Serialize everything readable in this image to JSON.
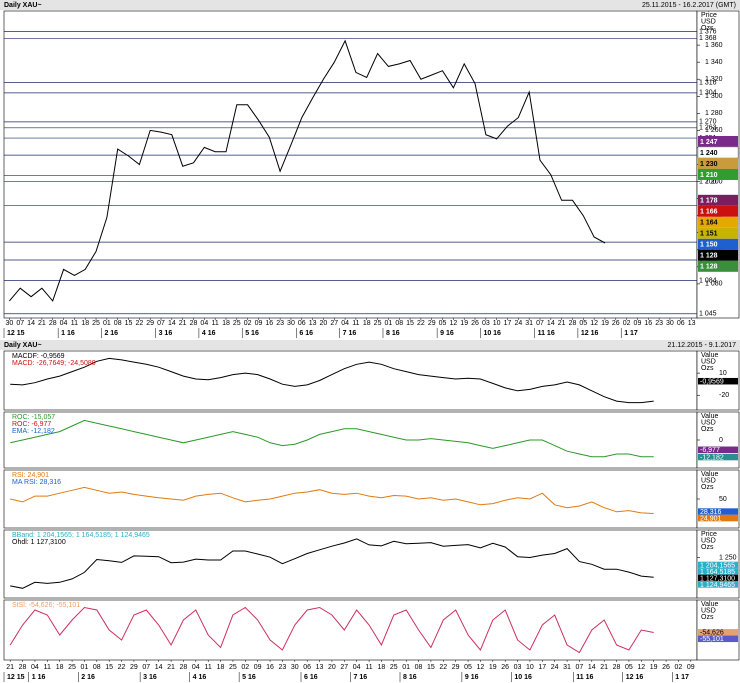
{
  "chart_data": [
    {
      "type": "line",
      "title": "Daily XAU~",
      "subtitle": "25.11.2015 - 16.2.2017 (GMT)",
      "unit_label": [
        "Price",
        "USD",
        "Ozs"
      ],
      "categories": [
        "30",
        "07",
        "14",
        "21",
        "28",
        "04",
        "11",
        "18",
        "25",
        "01",
        "08",
        "15",
        "22",
        "29",
        "07",
        "14",
        "21",
        "28",
        "04",
        "11",
        "18",
        "25",
        "02",
        "09",
        "16",
        "23",
        "30",
        "06",
        "13",
        "20",
        "27",
        "04",
        "11",
        "18",
        "25",
        "01",
        "08",
        "15",
        "22",
        "29",
        "05",
        "12",
        "19",
        "26",
        "03",
        "10",
        "17",
        "24",
        "31",
        "07",
        "14",
        "21",
        "28",
        "05",
        "12",
        "19",
        "26",
        "02",
        "09",
        "16",
        "23",
        "30",
        "06",
        "13"
      ],
      "category_groups": [
        "12 15",
        null,
        null,
        null,
        null,
        "1 16",
        null,
        null,
        null,
        "2 16",
        null,
        null,
        null,
        null,
        "3 16",
        null,
        null,
        null,
        "4 16",
        null,
        null,
        null,
        "5 16",
        null,
        null,
        null,
        null,
        "6 16",
        null,
        null,
        null,
        "7 16",
        null,
        null,
        null,
        "8 16",
        null,
        null,
        null,
        null,
        "9 16",
        null,
        null,
        null,
        "10 16",
        null,
        null,
        null,
        null,
        "11 16",
        null,
        null,
        null,
        "12 16",
        null,
        null,
        null,
        "1 17",
        null,
        null,
        null,
        null,
        null,
        null
      ],
      "series": [
        {
          "color": "#000000",
          "values": [
            1060,
            1075,
            1065,
            1075,
            1060,
            1097,
            1090,
            1097,
            1118,
            1158,
            1238,
            1230,
            1220,
            1260,
            1258,
            1255,
            1218,
            1222,
            1240,
            1235,
            1235,
            1290,
            1290,
            1272,
            1252,
            1212,
            1243,
            1275,
            1298,
            1320,
            1340,
            1365,
            1328,
            1322,
            1350,
            1335,
            1338,
            1342,
            1320,
            1325,
            1330,
            1310,
            1338,
            1315,
            1255,
            1250,
            1265,
            1275,
            1305,
            1225,
            1208,
            1178,
            1178,
            1160,
            1135,
            1128,
            null,
            null,
            null,
            null,
            null,
            null,
            null,
            null
          ]
        }
      ],
      "ylim": [
        1040,
        1400
      ],
      "yticks": [
        {
          "value": 1080,
          "label": "1 080"
        },
        {
          "value": 1100,
          "label": "1 100"
        },
        {
          "value": 1120,
          "label": "1 120"
        },
        {
          "value": 1140,
          "label": "1 140"
        },
        {
          "value": 1160,
          "label": "1 160"
        },
        {
          "value": 1180,
          "label": "1 180"
        },
        {
          "value": 1200,
          "label": "1 200"
        },
        {
          "value": 1220,
          "label": "1 220"
        },
        {
          "value": 1240,
          "label": "1 240"
        },
        {
          "value": 1260,
          "label": "1 260"
        },
        {
          "value": 1280,
          "label": "1 280"
        },
        {
          "value": 1300,
          "label": "1 300"
        },
        {
          "value": 1320,
          "label": "1 320"
        },
        {
          "value": 1340,
          "label": "1 340"
        },
        {
          "value": 1360,
          "label": "1 360"
        }
      ],
      "levels": [
        {
          "value": 1376,
          "label": "1 376"
        },
        {
          "value": 1368,
          "label": "1 368"
        },
        {
          "value": 1316,
          "label": "1 316"
        },
        {
          "value": 1304,
          "label": "1 304"
        },
        {
          "value": 1270,
          "label": "1 270"
        },
        {
          "value": 1263,
          "label": "1 263"
        },
        {
          "value": 1251,
          "label": "1 251"
        },
        {
          "value": 1231,
          "label": "1 231"
        },
        {
          "value": 1207,
          "label": "1 207"
        },
        {
          "value": 1200,
          "label": "1 200"
        },
        {
          "value": 1172,
          "label": "1 172"
        },
        {
          "value": 1129,
          "label": "1 129"
        },
        {
          "value": 1108,
          "label": "1 108"
        },
        {
          "value": 1084,
          "label": "1 084"
        },
        {
          "value": 1045,
          "label": "1 045"
        }
      ],
      "value_boxes": [
        {
          "value": 1247,
          "label": "1 247",
          "color": "#7a2a8a"
        },
        {
          "value": 1240,
          "label": "1 240",
          "color": "#ffffff"
        },
        {
          "value": 1230,
          "label": "1 230",
          "color": "#c89b3c"
        },
        {
          "value": 1210,
          "label": "1 210",
          "color": "#2e9e2e"
        },
        {
          "value": 1178,
          "label": "1 178",
          "color": "#7a1f5c"
        },
        {
          "value": 1166,
          "label": "1 166",
          "color": "#cc1010"
        },
        {
          "value": 1164,
          "label": "1 164",
          "color": "#e6a800"
        },
        {
          "value": 1151,
          "label": "1 151",
          "color": "#c8b400"
        },
        {
          "value": 1150,
          "label": "1 150",
          "color": "#1f5fcf"
        },
        {
          "value": 1128,
          "label": "1 128",
          "color": "#000000"
        },
        {
          "value": 1128,
          "label": "1 128",
          "color": "#3a8f3a"
        }
      ]
    },
    {
      "type": "line",
      "title": "Daily XAU~",
      "subtitle": "21.12.2015 - 9.1.2017",
      "unit_label": [
        "Value",
        "USD",
        "Ozs"
      ],
      "legend": [
        {
          "label": "MACDF: -0,9569",
          "color": "#000000"
        },
        {
          "label": "MACD: -26,7649; -24,5080",
          "color": "#cc1010"
        }
      ],
      "series": [
        {
          "color": "#000000",
          "values": [
            -5,
            -6,
            -3,
            2,
            6,
            12,
            18,
            26,
            30,
            28,
            25,
            22,
            18,
            12,
            6,
            2,
            1,
            4,
            8,
            10,
            8,
            2,
            -5,
            -8,
            -6,
            0,
            8,
            16,
            22,
            25,
            22,
            16,
            12,
            8,
            6,
            4,
            2,
            3,
            2,
            -4,
            -10,
            -14,
            -12,
            -8,
            -6,
            -2,
            -6,
            -14,
            -22,
            -28,
            -30,
            -30,
            -28,
            null,
            null,
            null
          ]
        }
      ],
      "ylim": [
        -40,
        40
      ],
      "yticks": [
        -20,
        10
      ],
      "value_boxes": [
        {
          "value": -0.9569,
          "label": "-0,9569",
          "color": "#000000"
        }
      ]
    },
    {
      "type": "line",
      "unit_label": [
        "Value",
        "USD",
        "Ozs"
      ],
      "legend": [
        {
          "label": "ROC: -15,057",
          "color": "#2a9a2a"
        },
        {
          "label": "ROC: -6,977",
          "color": "#cc1010"
        },
        {
          "label": "EMA: -12,182",
          "color": "#1f5fcf"
        }
      ],
      "series": [
        {
          "color": "#2a9a2a",
          "values": [
            -2,
            0,
            2,
            4,
            6,
            10,
            14,
            12,
            10,
            8,
            6,
            4,
            2,
            0,
            -2,
            0,
            2,
            4,
            6,
            4,
            2,
            -2,
            -4,
            -3,
            0,
            4,
            6,
            8,
            8,
            6,
            4,
            2,
            0,
            0,
            1,
            0,
            -1,
            -2,
            -4,
            -6,
            -4,
            -2,
            0,
            0,
            -4,
            -8,
            -10,
            -12,
            -12,
            -10,
            -10,
            -12,
            -12,
            null,
            null,
            null
          ]
        }
      ],
      "ylim": [
        -20,
        20
      ],
      "yticks": [
        0
      ],
      "value_boxes": [
        {
          "value": -6.977,
          "label": "-6,977",
          "color": "#7a2a8a"
        },
        {
          "value": -12.182,
          "label": "-12,182",
          "color": "#2a8f8f"
        }
      ]
    },
    {
      "type": "line",
      "unit_label": [
        "Value",
        "USD",
        "Ozs"
      ],
      "legend": [
        {
          "label": "RSI: 24,901",
          "color": "#e07a10"
        },
        {
          "label": "MA RSI: 28,316",
          "color": "#1f5fcf"
        }
      ],
      "series": [
        {
          "color": "#e07a10",
          "values": [
            50,
            45,
            55,
            55,
            60,
            65,
            70,
            65,
            60,
            62,
            58,
            55,
            52,
            50,
            48,
            55,
            58,
            60,
            52,
            45,
            48,
            50,
            55,
            60,
            62,
            66,
            60,
            58,
            60,
            55,
            52,
            56,
            55,
            50,
            52,
            48,
            50,
            45,
            40,
            42,
            48,
            52,
            50,
            60,
            40,
            35,
            38,
            45,
            35,
            28,
            30,
            26,
            25,
            null,
            null,
            null
          ]
        }
      ],
      "ylim": [
        0,
        100
      ],
      "yticks": [
        50
      ],
      "value_boxes": [
        {
          "value": 28.316,
          "label": "28,316",
          "color": "#1f5fcf"
        },
        {
          "value": 24.901,
          "label": "24,901",
          "color": "#e07a10"
        }
      ]
    },
    {
      "type": "line",
      "unit_label": [
        "Price",
        "USD",
        "Ozs"
      ],
      "legend": [
        {
          "label": "BBand: 1 204,1565; 1 164,5185; 1 124,9465",
          "color": "#2ab0c8"
        },
        {
          "label": "Ohdl: 1 127,3100",
          "color": "#000000"
        }
      ],
      "series": [
        {
          "color": "#000000",
          "values": [
            1075,
            1060,
            1097,
            1090,
            1097,
            1118,
            1158,
            1238,
            1230,
            1220,
            1260,
            1258,
            1255,
            1218,
            1222,
            1240,
            1235,
            1235,
            1290,
            1290,
            1272,
            1252,
            1212,
            1243,
            1275,
            1298,
            1320,
            1340,
            1365,
            1328,
            1322,
            1350,
            1335,
            1338,
            1342,
            1320,
            1325,
            1330,
            1310,
            1338,
            1315,
            1255,
            1250,
            1265,
            1275,
            1305,
            1225,
            1208,
            1178,
            1178,
            1160,
            1135,
            1128,
            null,
            null,
            null
          ]
        }
      ],
      "ylim": [
        1000,
        1420
      ],
      "yticks": [
        {
          "value": 1250,
          "label": "1 250"
        }
      ],
      "value_boxes": [
        {
          "value": 1204.1565,
          "label": "1 204,1565",
          "color": "#2ab0c8"
        },
        {
          "value": 1164.5185,
          "label": "1 164,5185",
          "color": "#2ab0c8"
        },
        {
          "value": 1127.31,
          "label": "1 127,3100",
          "color": "#000000"
        },
        {
          "value": 1124.9465,
          "label": "1 124,9465",
          "color": "#2ab0c8"
        }
      ]
    },
    {
      "type": "line",
      "unit_label": [
        "Value",
        "USD",
        "Ozs"
      ],
      "legend": [
        {
          "label": "StSl: -54,626; -55,101",
          "color": "#e8a070"
        }
      ],
      "series": [
        {
          "color": "#cc3060",
          "values": [
            -80,
            -40,
            -10,
            -20,
            -60,
            -30,
            -5,
            -10,
            -50,
            -70,
            -20,
            -10,
            -40,
            -80,
            -30,
            -10,
            -60,
            -85,
            -20,
            -5,
            -30,
            -70,
            -90,
            -40,
            -10,
            -5,
            -20,
            -50,
            -10,
            -40,
            -80,
            -20,
            -10,
            -50,
            -85,
            -30,
            -10,
            -60,
            -90,
            -30,
            -10,
            -70,
            -90,
            -40,
            -20,
            -80,
            -95,
            -50,
            -30,
            -80,
            -90,
            -50,
            -55,
            null,
            null,
            null
          ]
        }
      ],
      "ylim": [
        -110,
        10
      ],
      "value_boxes": [
        {
          "value": -54.626,
          "label": "-54,626",
          "color": "#e8a070"
        },
        {
          "value": -55.101,
          "label": "-55,101",
          "color": "#5a5ac8"
        }
      ],
      "categories": [
        "21",
        "28",
        "04",
        "11",
        "18",
        "25",
        "01",
        "08",
        "15",
        "22",
        "29",
        "07",
        "14",
        "21",
        "28",
        "04",
        "11",
        "18",
        "25",
        "02",
        "09",
        "16",
        "23",
        "30",
        "06",
        "13",
        "20",
        "27",
        "04",
        "11",
        "18",
        "25",
        "01",
        "08",
        "15",
        "22",
        "29",
        "05",
        "12",
        "19",
        "26",
        "03",
        "10",
        "17",
        "24",
        "31",
        "07",
        "14",
        "21",
        "28",
        "05",
        "12",
        "19",
        "26",
        "02",
        "09"
      ],
      "category_groups": [
        "12 15",
        null,
        "1 16",
        null,
        null,
        null,
        "2 16",
        null,
        null,
        null,
        null,
        "3 16",
        null,
        null,
        null,
        "4 16",
        null,
        null,
        null,
        "5 16",
        null,
        null,
        null,
        null,
        "6 16",
        null,
        null,
        null,
        "7 16",
        null,
        null,
        null,
        "8 16",
        null,
        null,
        null,
        null,
        "9 16",
        null,
        null,
        null,
        "10 16",
        null,
        null,
        null,
        null,
        "11 16",
        null,
        null,
        null,
        "12 16",
        null,
        null,
        null,
        "1 17",
        null
      ]
    }
  ]
}
